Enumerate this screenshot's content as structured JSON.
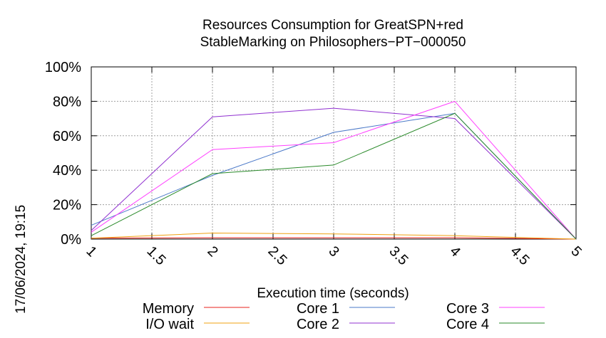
{
  "chart_data": {
    "type": "line",
    "title": "Resources Consumption for GreatSPN+red",
    "subtitle": "StableMarking on Philosophers−PT−000050",
    "xlabel": "Execution time (seconds)",
    "ylabel": "",
    "timestamp": "17/06/2024, 19:15",
    "xlim": [
      1,
      5
    ],
    "ylim": [
      0,
      100
    ],
    "x_ticks": [
      "1",
      "1.5",
      "2",
      "2.5",
      "3",
      "3.5",
      "4",
      "4.5",
      "5"
    ],
    "y_ticks": [
      "0%",
      "20%",
      "40%",
      "60%",
      "80%",
      "100%"
    ],
    "grid": true,
    "legend_position": "bottom",
    "x": [
      1,
      2,
      3,
      4,
      5
    ],
    "series": [
      {
        "name": "Memory",
        "color": "#e8201c",
        "values": [
          0.5,
          0.8,
          0.8,
          0.8,
          0
        ]
      },
      {
        "name": "I/O wait",
        "color": "#f0a010",
        "values": [
          0.5,
          3.5,
          3,
          2,
          0
        ]
      },
      {
        "name": "Core 1",
        "color": "#4a78c8",
        "values": [
          8,
          37,
          62,
          73,
          0
        ]
      },
      {
        "name": "Core 2",
        "color": "#9030d0",
        "values": [
          5,
          71,
          76,
          70,
          0
        ]
      },
      {
        "name": "Core 3",
        "color": "#ff40ff",
        "values": [
          4,
          52,
          56,
          80,
          0
        ]
      },
      {
        "name": "Core 4",
        "color": "#2a8a2a",
        "values": [
          2,
          38,
          43,
          73,
          0
        ]
      }
    ]
  }
}
